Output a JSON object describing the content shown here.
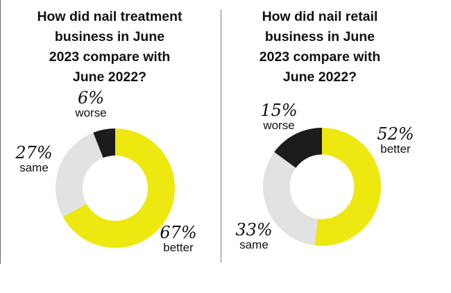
{
  "colors": {
    "better": "#ede80f",
    "same": "#e2e2e2",
    "worse": "#1c1c1c"
  },
  "chart_data": [
    {
      "type": "pie",
      "title": "How did nail treatment business in June 2023 compare with June 2022?",
      "title_lines": [
        "How did nail treatment",
        "business in June",
        "2023 compare with",
        "June 2022?"
      ],
      "slices": [
        {
          "label": "better",
          "value": 67,
          "display": "67%"
        },
        {
          "label": "same",
          "value": 27,
          "display": "27%"
        },
        {
          "label": "worse",
          "value": 6,
          "display": "6%"
        }
      ]
    },
    {
      "type": "pie",
      "title": "How did nail retail business in June 2023 compare with June 2022?",
      "title_lines": [
        "How did nail retail",
        "business in June",
        "2023 compare with",
        "June 2022?"
      ],
      "slices": [
        {
          "label": "better",
          "value": 52,
          "display": "52%"
        },
        {
          "label": "same",
          "value": 33,
          "display": "33%"
        },
        {
          "label": "worse",
          "value": 15,
          "display": "15%"
        }
      ]
    }
  ]
}
